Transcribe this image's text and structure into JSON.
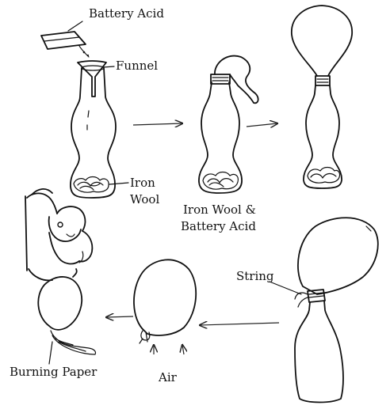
{
  "labels": {
    "battery_acid": "Battery Acid",
    "funnel": "Funnel",
    "iron": "Iron",
    "wool": "Wool",
    "iron_wool_battery_line1": "Iron Wool &",
    "iron_wool_battery_line2": "Battery Acid",
    "string": "String",
    "air": "Air",
    "burning_paper": "Burning Paper"
  }
}
